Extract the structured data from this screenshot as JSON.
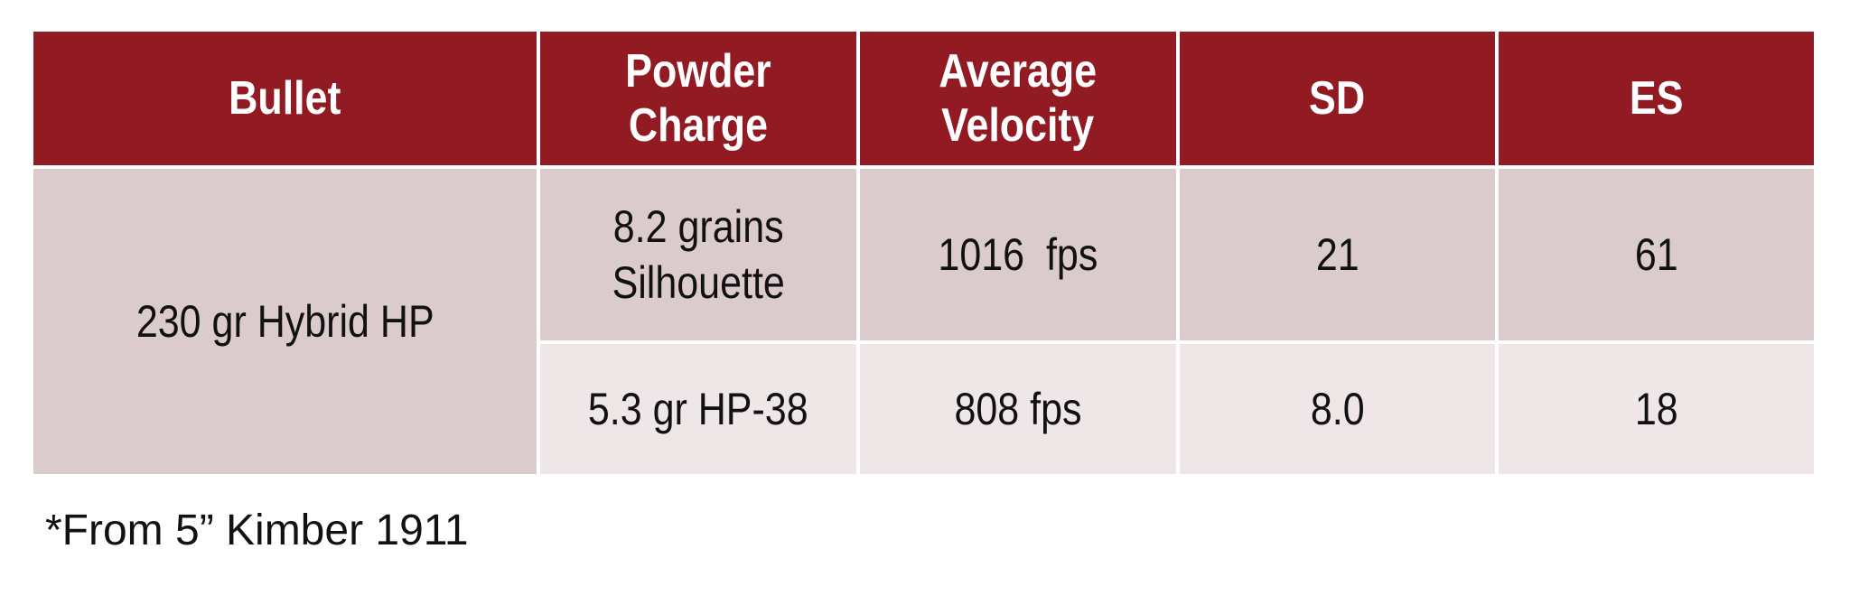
{
  "table": {
    "header": [
      [
        "Bullet"
      ],
      [
        "Powder",
        "Charge"
      ],
      [
        "Average",
        "Velocity"
      ],
      [
        "SD"
      ],
      [
        "ES"
      ]
    ],
    "bullet": "230 gr Hybrid HP",
    "rows": [
      [
        [
          "8.2 grains",
          "Silhouette"
        ],
        "1016  fps",
        "21",
        "61"
      ],
      [
        [
          "5.3 gr HP-38"
        ],
        "808 fps",
        "8.0",
        "18"
      ]
    ]
  },
  "footnote": "*From 5” Kimber 1911"
}
